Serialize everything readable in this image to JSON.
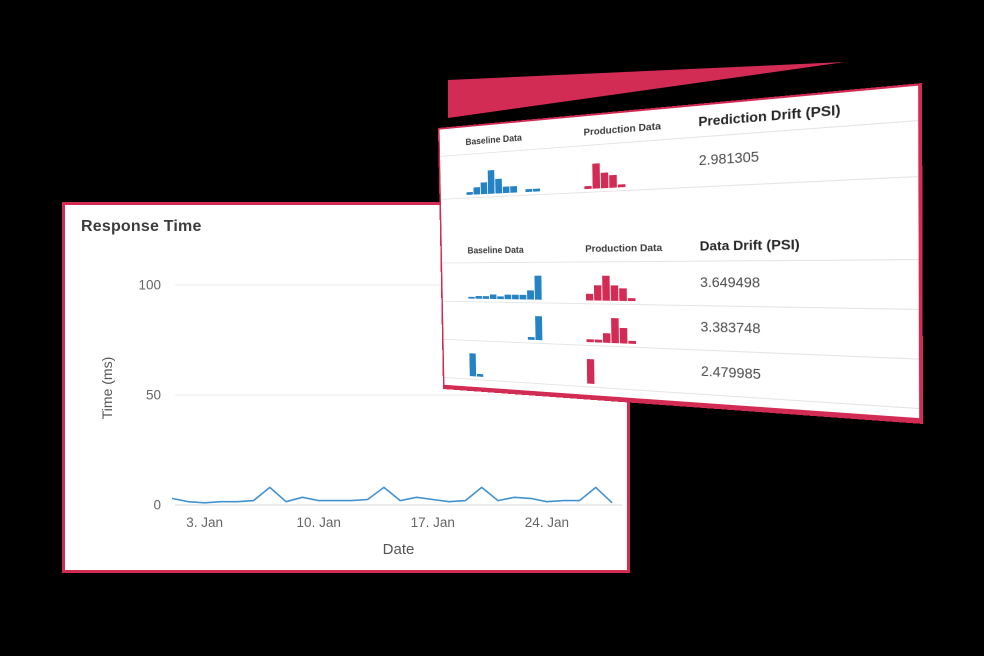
{
  "accent_color": "#d22b54",
  "chart_data": [
    {
      "type": "line",
      "title": "Response Time",
      "xlabel": "Date",
      "ylabel": "Time (ms)",
      "ylim": [
        0,
        100
      ],
      "yticks": [
        0,
        50,
        100
      ],
      "xticks": [
        {
          "day": 3,
          "label": "3. Jan"
        },
        {
          "day": 10,
          "label": "10. Jan"
        },
        {
          "day": 17,
          "label": "17. Jan"
        },
        {
          "day": 24,
          "label": "24. Jan"
        }
      ],
      "x_days": [
        1,
        2,
        3,
        4,
        5,
        6,
        7,
        8,
        9,
        10,
        11,
        12,
        13,
        14,
        15,
        16,
        17,
        18,
        19,
        20,
        21,
        22,
        23,
        24,
        25,
        26,
        27,
        28
      ],
      "values": [
        3,
        1.5,
        1,
        1.5,
        1.5,
        2,
        8,
        1.5,
        3.5,
        2,
        2,
        2,
        2.5,
        8,
        2,
        3.5,
        2.5,
        1.5,
        2,
        8,
        2,
        3.5,
        3,
        1.5,
        2,
        2,
        8,
        1
      ],
      "line_color": "#4292cf",
      "grid": true,
      "legend": "none"
    },
    {
      "type": "histogram-table",
      "baseline_color": "#2583c5",
      "production_color": "#d22b54",
      "sections": [
        {
          "columns": [
            "Baseline Data",
            "Production Data",
            "Prediction Drift (PSI)"
          ],
          "rows": [
            {
              "baseline_hist": [
                1,
                2.5,
                4,
                8,
                5,
                2,
                2,
                0,
                1,
                1
              ],
              "production_hist": [
                1,
                8,
                5,
                4,
                1
              ],
              "value": "2.981305"
            }
          ]
        },
        {
          "columns": [
            "Baseline Data",
            "Production Data",
            "Data Drift (PSI)"
          ],
          "rows": [
            {
              "baseline_hist": [
                0.5,
                1,
                1,
                1.5,
                1,
                1.5,
                1.5,
                1.5,
                3,
                8
              ],
              "production_hist": [
                2,
                5,
                8,
                5,
                4,
                1
              ],
              "value": "3.649498"
            },
            {
              "baseline_hist": [
                0,
                0,
                0,
                0,
                0,
                0,
                0,
                0,
                1,
                8
              ],
              "production_hist": [
                1,
                1,
                3,
                8,
                5,
                1
              ],
              "value": "3.383748"
            },
            {
              "baseline_hist": [
                8,
                1
              ],
              "production_hist": [
                8
              ],
              "value": "2.479985"
            }
          ]
        }
      ]
    }
  ]
}
